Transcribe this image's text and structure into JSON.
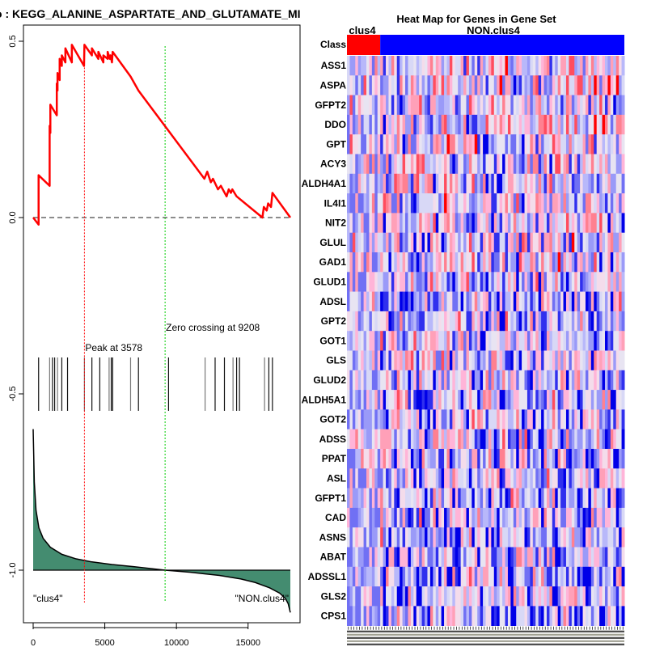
{
  "chart_data": [
    {
      "type": "line",
      "title": "o : KEGG_ALANINE_ASPARTATE_AND_GLUTAMATE_MI",
      "xlabel": "",
      "ylabel": "",
      "xlim": [
        0,
        18000
      ],
      "ylim": [
        -1.15,
        0.55
      ],
      "x_ticks": [
        0,
        5000,
        10000,
        15000
      ],
      "x_tick_labels": [
        "0",
        "5000",
        "10000",
        "15000"
      ],
      "y_ticks": [
        0.5,
        0.0,
        -0.5,
        -1.0
      ],
      "y_tick_labels": [
        "0.5",
        "0.0",
        "-0.5",
        "-1.0"
      ],
      "running_es": {
        "name": "Running enrichment score",
        "color": "#ff0000",
        "x": [
          0,
          380,
          380,
          1150,
          1150,
          1200,
          1200,
          1650,
          1650,
          1700,
          1700,
          1850,
          1850,
          2000,
          2000,
          2250,
          2250,
          2700,
          2700,
          3550,
          3578,
          4100,
          4100,
          4550,
          4550,
          4900,
          4900,
          5200,
          5200,
          5350,
          5400,
          5500,
          5550,
          6800,
          7350,
          11950,
          12150,
          12400,
          12550,
          12900,
          13100,
          13500,
          13650,
          13800,
          13900,
          14200,
          16000,
          16100,
          16300,
          16400,
          16600,
          16700,
          17950
        ],
        "y": [
          0,
          -0.02,
          0.12,
          0.09,
          0.26,
          0.24,
          0.32,
          0.29,
          0.38,
          0.36,
          0.41,
          0.39,
          0.45,
          0.43,
          0.46,
          0.44,
          0.48,
          0.44,
          0.49,
          0.43,
          0.49,
          0.46,
          0.48,
          0.45,
          0.47,
          0.44,
          0.46,
          0.45,
          0.47,
          0.45,
          0.46,
          0.44,
          0.47,
          0.4,
          0.36,
          0.11,
          0.13,
          0.1,
          0.11,
          0.08,
          0.09,
          0.06,
          0.08,
          0.07,
          0.08,
          0.06,
          0.0,
          0.03,
          0.02,
          0.04,
          0.03,
          0.07,
          0.0
        ]
      },
      "zero_line": {
        "y": 0,
        "style": "dashed",
        "color": "#666666"
      },
      "peak": {
        "x": 3578,
        "label": "Peak at 3578",
        "color": "#ff0000"
      },
      "zero_crossing": {
        "x": 9208,
        "label": "Zero crossing at 9208",
        "color": "#00cc00"
      },
      "hit_positions": [
        380,
        1150,
        1350,
        1500,
        1700,
        2000,
        2400,
        3578,
        4100,
        4650,
        5300,
        5450,
        5550,
        6800,
        7350,
        9450,
        12000,
        12700,
        13350,
        13950,
        14200,
        14400,
        16150,
        16450,
        16700
      ],
      "ranked_metric": {
        "fill": "#448c70",
        "baseline": -1.0,
        "x": [
          0,
          80,
          200,
          400,
          700,
          1200,
          2000,
          3000,
          4000,
          5500,
          7000,
          9208,
          11000,
          13000,
          14500,
          15500,
          16500,
          17200,
          17600,
          17800,
          17950
        ],
        "y": [
          -0.6,
          -0.75,
          -0.83,
          -0.88,
          -0.91,
          -0.935,
          -0.955,
          -0.968,
          -0.976,
          -0.984,
          -0.99,
          -1.0,
          -1.006,
          -1.015,
          -1.025,
          -1.035,
          -1.05,
          -1.065,
          -1.08,
          -1.095,
          -1.12
        ]
      },
      "annotations": [
        {
          "text": "\"clus4\"",
          "position": "bottom-left"
        },
        {
          "text": "\"NON.clus4\"",
          "position": "bottom-right"
        }
      ]
    },
    {
      "type": "heatmap",
      "title": "Heat Map for Genes in Gene Set",
      "class_row_label": "Class",
      "groups": [
        {
          "name": "clus4",
          "color": "#ff0000",
          "fraction": 0.12
        },
        {
          "name": "NON.clus4",
          "color": "#0000ff",
          "fraction": 0.88
        }
      ],
      "genes": [
        "ASS1",
        "ASPA",
        "GFPT2",
        "DDO",
        "GPT",
        "ACY3",
        "ALDH4A1",
        "IL4I1",
        "NIT2",
        "GLUL",
        "GAD1",
        "GLUD1",
        "ADSL",
        "GPT2",
        "GOT1",
        "GLS",
        "GLUD2",
        "ALDH5A1",
        "GOT2",
        "ADSS",
        "PPAT",
        "ASL",
        "GFPT1",
        "CAD",
        "ASNS",
        "ABAT",
        "ADSSL1",
        "GLS2",
        "CPS1"
      ],
      "color_scale": {
        "low": "#0000ff",
        "mid": "#eeeeff",
        "high": "#ff0000"
      },
      "n_columns": 100
    }
  ]
}
